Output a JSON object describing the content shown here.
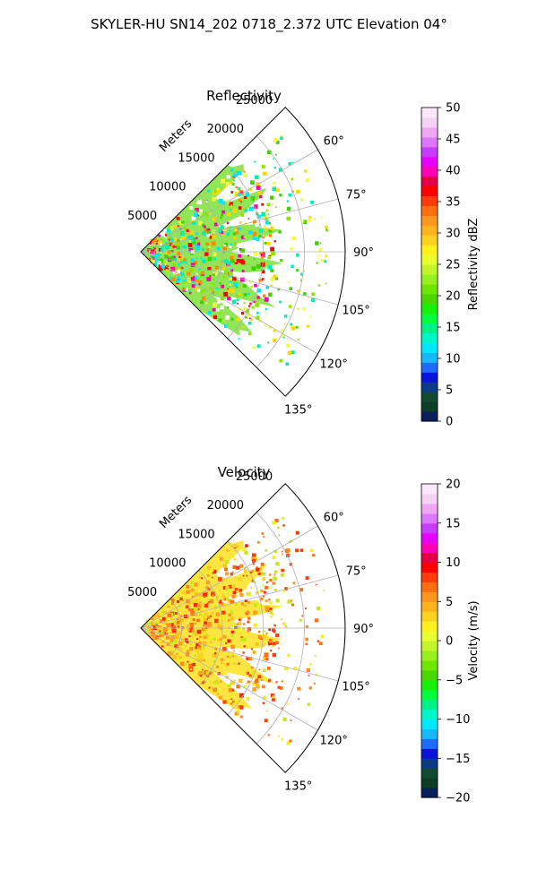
{
  "figure": {
    "suptitle": "SKYLER-HU  SN14_202  0718_2.372 UTC Elevation 04°"
  },
  "chart_data": [
    {
      "type": "heatmap",
      "projection": "polar-sector",
      "title": "Reflectivity",
      "radial_label": "Meters",
      "r_ticks": [
        5000,
        10000,
        15000,
        20000,
        25000
      ],
      "r_tick_labels": [
        "5000",
        "10000",
        "15000",
        "20000",
        "25000"
      ],
      "rlim": [
        0,
        25000
      ],
      "theta_ticks": [
        60,
        75,
        90,
        105,
        120,
        135
      ],
      "theta_tick_labels": [
        "60°",
        "75°",
        "90°",
        "105°",
        "120°",
        "135°"
      ],
      "theta_range": [
        45,
        135
      ],
      "grid": true,
      "colorbar": {
        "label": "Reflectivity dBZ",
        "range": [
          0,
          50
        ],
        "ticks": [
          0,
          5,
          10,
          15,
          20,
          25,
          30,
          35,
          40,
          45,
          50
        ],
        "tick_labels": [
          "0",
          "5",
          "10",
          "15",
          "20",
          "25",
          "30",
          "35",
          "40",
          "45",
          "50"
        ],
        "colors": [
          "#0a1f5a",
          "#0d3d27",
          "#114a2e",
          "#0c3b86",
          "#0a14d8",
          "#1e6bff",
          "#17b8ff",
          "#00e6ff",
          "#00f5c8",
          "#00f08a",
          "#00ff3c",
          "#19f00a",
          "#4cd600",
          "#6fe600",
          "#98f01e",
          "#c2f52a",
          "#e9ff2e",
          "#fff01e",
          "#ffd21e",
          "#ffb41e",
          "#ff961e",
          "#ff6e0f",
          "#ff3c0a",
          "#ff0000",
          "#e60046",
          "#ff00b4",
          "#e600ff",
          "#c83cff",
          "#dc78ff",
          "#f0a6f0",
          "#f7d2f7",
          "#fbe8fb"
        ],
        "mark_colors": [
          "#ff00aa",
          "#ff0000",
          "#ff8c00",
          "#ffd700",
          "#f0ff3a",
          "#8ce600",
          "#3cd200",
          "#00f0b4",
          "#00e6ff",
          "#ffffff"
        ],
        "domain_color": "#7ce23a"
      }
    },
    {
      "type": "heatmap",
      "projection": "polar-sector",
      "title": "Velocity",
      "radial_label": "Meters",
      "r_ticks": [
        5000,
        10000,
        15000,
        20000,
        25000
      ],
      "r_tick_labels": [
        "5000",
        "10000",
        "15000",
        "20000",
        "25000"
      ],
      "rlim": [
        0,
        25000
      ],
      "theta_ticks": [
        60,
        75,
        90,
        105,
        120,
        135
      ],
      "theta_tick_labels": [
        "60°",
        "75°",
        "90°",
        "105°",
        "120°",
        "135°"
      ],
      "theta_range": [
        45,
        135
      ],
      "grid": true,
      "colorbar": {
        "label": "Velocity (m/s)",
        "range": [
          -20,
          20
        ],
        "ticks": [
          -20,
          -15,
          -10,
          -5,
          0,
          5,
          10,
          15,
          20
        ],
        "tick_labels": [
          "−20",
          "−15",
          "−10",
          "−5",
          "0",
          "5",
          "10",
          "15",
          "20"
        ],
        "colors": [
          "#0a1f5a",
          "#0d3d27",
          "#114a2e",
          "#0c3b86",
          "#0a14d8",
          "#1e6bff",
          "#17b8ff",
          "#00e6ff",
          "#00f5c8",
          "#00f08a",
          "#00ff3c",
          "#19f00a",
          "#4cd600",
          "#6fe600",
          "#98f01e",
          "#c2f52a",
          "#e9ff2e",
          "#fff01e",
          "#ffd21e",
          "#ffb41e",
          "#ff961e",
          "#ff6e0f",
          "#ff3c0a",
          "#ff0000",
          "#e60046",
          "#ff00b4",
          "#e600ff",
          "#c83cff",
          "#dc78ff",
          "#f0a6f0",
          "#f7d2f7",
          "#fbe8fb"
        ],
        "mark_colors": [
          "#ffd21e",
          "#ffbe1e",
          "#ffa01e",
          "#ff8c1e",
          "#ff6e0f",
          "#f0f01e",
          "#c8e61e",
          "#ff3c0a",
          "#ff1e0a"
        ],
        "domain_color": "#ffe01e"
      }
    }
  ]
}
